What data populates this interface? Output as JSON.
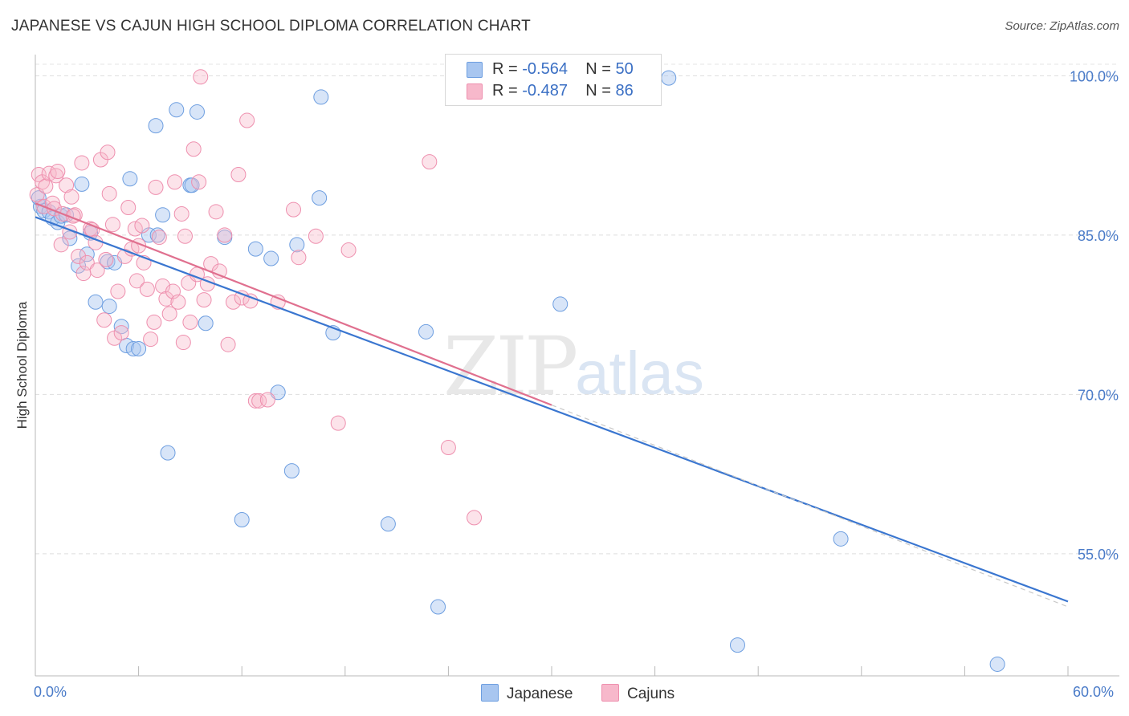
{
  "header": {
    "title": "JAPANESE VS CAJUN HIGH SCHOOL DIPLOMA CORRELATION CHART",
    "source": "Source: ZipAtlas.com"
  },
  "watermark": {
    "zip": "ZIP",
    "atlas": "atlas"
  },
  "legend": {
    "rows": [
      {
        "r_label": "R =",
        "r_value": "-0.564",
        "n_label": "N =",
        "n_value": "50",
        "color": "#a8c6f0",
        "stroke": "#6d9ee0"
      },
      {
        "r_label": "R =",
        "r_value": "-0.487",
        "n_label": "N =",
        "n_value": "86",
        "color": "#f7b8cb",
        "stroke": "#ee8fae"
      }
    ],
    "bottom": [
      "Japanese",
      "Cajuns"
    ]
  },
  "chart_data": {
    "type": "scatter",
    "title": "JAPANESE VS CAJUN HIGH SCHOOL DIPLOMA CORRELATION CHART",
    "xlabel": "",
    "ylabel": "High School Diploma",
    "xlim": [
      0,
      60
    ],
    "ylim": [
      43.5,
      102
    ],
    "x_tick_labels": [
      "0.0%",
      "60.0%"
    ],
    "y_ticks": [
      55,
      70,
      85,
      100
    ],
    "y_tick_labels": [
      "55.0%",
      "70.0%",
      "85.0%",
      "100.0%"
    ],
    "grid": true,
    "colors": {
      "japanese": "#3a76d0",
      "cajuns": "#e0708f",
      "axis_text": "#4a7bc8"
    },
    "series": [
      {
        "name": "Japanese",
        "points": [
          [
            0.3,
            87.7
          ],
          [
            0.5,
            87.3
          ],
          [
            0.8,
            87.2
          ],
          [
            1.0,
            86.6
          ],
          [
            1.3,
            86.2
          ],
          [
            1.5,
            86.8
          ],
          [
            2.0,
            84.7
          ],
          [
            2.5,
            82.1
          ],
          [
            2.7,
            89.8
          ],
          [
            3.0,
            83.2
          ],
          [
            3.2,
            85.2
          ],
          [
            3.5,
            78.7
          ],
          [
            4.2,
            82.5
          ],
          [
            4.3,
            78.3
          ],
          [
            4.6,
            82.4
          ],
          [
            5.0,
            76.4
          ],
          [
            5.3,
            74.6
          ],
          [
            5.5,
            90.3
          ],
          [
            5.7,
            74.3
          ],
          [
            6.0,
            74.3
          ],
          [
            6.6,
            85.0
          ],
          [
            7.0,
            95.3
          ],
          [
            7.1,
            85.0
          ],
          [
            7.4,
            86.9
          ],
          [
            7.7,
            64.5
          ],
          [
            8.2,
            96.8
          ],
          [
            9.0,
            89.7
          ],
          [
            9.4,
            96.6
          ],
          [
            9.9,
            76.7
          ],
          [
            11.0,
            84.8
          ],
          [
            12.0,
            58.2
          ],
          [
            12.8,
            83.7
          ],
          [
            13.7,
            82.8
          ],
          [
            14.1,
            70.2
          ],
          [
            14.9,
            62.8
          ],
          [
            15.2,
            84.1
          ],
          [
            16.5,
            88.5
          ],
          [
            16.6,
            98.0
          ],
          [
            17.3,
            75.8
          ],
          [
            20.5,
            57.8
          ],
          [
            22.7,
            75.9
          ],
          [
            23.4,
            50.0
          ],
          [
            30.5,
            78.5
          ],
          [
            36.8,
            99.8
          ],
          [
            40.8,
            46.4
          ],
          [
            46.8,
            56.4
          ],
          [
            55.9,
            44.6
          ],
          [
            0.2,
            88.5
          ],
          [
            1.8,
            86.9
          ],
          [
            9.1,
            89.7
          ]
        ]
      },
      {
        "name": "Cajuns",
        "points": [
          [
            0.1,
            88.8
          ],
          [
            0.2,
            90.7
          ],
          [
            0.4,
            90.0
          ],
          [
            0.5,
            87.7
          ],
          [
            0.6,
            89.6
          ],
          [
            0.8,
            90.8
          ],
          [
            1.0,
            88.0
          ],
          [
            1.1,
            87.5
          ],
          [
            1.2,
            90.6
          ],
          [
            1.3,
            91.0
          ],
          [
            1.5,
            84.1
          ],
          [
            1.6,
            87.0
          ],
          [
            1.8,
            89.7
          ],
          [
            2.0,
            85.3
          ],
          [
            2.1,
            88.6
          ],
          [
            2.3,
            86.9
          ],
          [
            2.5,
            83.0
          ],
          [
            2.7,
            91.8
          ],
          [
            2.8,
            81.4
          ],
          [
            3.0,
            82.4
          ],
          [
            3.2,
            85.6
          ],
          [
            3.3,
            85.5
          ],
          [
            3.5,
            84.3
          ],
          [
            3.6,
            81.7
          ],
          [
            3.8,
            92.1
          ],
          [
            4.0,
            77.0
          ],
          [
            4.1,
            82.7
          ],
          [
            4.2,
            92.8
          ],
          [
            4.3,
            88.9
          ],
          [
            4.5,
            86.0
          ],
          [
            4.6,
            75.3
          ],
          [
            4.8,
            79.7
          ],
          [
            5.0,
            75.8
          ],
          [
            5.2,
            83.0
          ],
          [
            5.4,
            87.6
          ],
          [
            5.6,
            83.7
          ],
          [
            5.8,
            85.6
          ],
          [
            5.9,
            80.7
          ],
          [
            6.0,
            84.0
          ],
          [
            6.2,
            85.9
          ],
          [
            6.5,
            79.9
          ],
          [
            6.7,
            75.2
          ],
          [
            6.9,
            76.8
          ],
          [
            7.0,
            89.5
          ],
          [
            7.2,
            84.8
          ],
          [
            7.4,
            80.2
          ],
          [
            7.6,
            79.0
          ],
          [
            7.8,
            77.6
          ],
          [
            8.0,
            79.7
          ],
          [
            8.1,
            90.0
          ],
          [
            8.3,
            78.7
          ],
          [
            8.5,
            87.0
          ],
          [
            8.6,
            74.9
          ],
          [
            8.7,
            84.9
          ],
          [
            8.9,
            80.5
          ],
          [
            9.0,
            76.8
          ],
          [
            9.2,
            93.1
          ],
          [
            9.4,
            81.3
          ],
          [
            9.5,
            90.0
          ],
          [
            9.6,
            99.9
          ],
          [
            9.8,
            78.9
          ],
          [
            10.0,
            80.4
          ],
          [
            10.2,
            82.3
          ],
          [
            10.5,
            87.2
          ],
          [
            10.7,
            81.6
          ],
          [
            11.0,
            85.0
          ],
          [
            11.2,
            74.7
          ],
          [
            11.5,
            78.7
          ],
          [
            11.8,
            90.7
          ],
          [
            12.0,
            79.1
          ],
          [
            12.3,
            95.8
          ],
          [
            12.5,
            78.8
          ],
          [
            12.8,
            69.4
          ],
          [
            13.0,
            69.4
          ],
          [
            14.1,
            78.7
          ],
          [
            15.0,
            87.4
          ],
          [
            15.3,
            82.9
          ],
          [
            16.3,
            84.9
          ],
          [
            17.6,
            67.3
          ],
          [
            18.2,
            83.6
          ],
          [
            22.9,
            91.9
          ],
          [
            24.0,
            65.0
          ],
          [
            25.5,
            58.4
          ],
          [
            2.2,
            86.8
          ],
          [
            6.3,
            82.4
          ],
          [
            13.5,
            69.5
          ]
        ]
      }
    ],
    "trend_lines": [
      {
        "series": "Japanese",
        "x": [
          0,
          60
        ],
        "y": [
          86.7,
          50.5
        ]
      },
      {
        "series": "Cajuns",
        "x": [
          0,
          30
        ],
        "y": [
          88.0,
          69.0
        ]
      }
    ]
  }
}
